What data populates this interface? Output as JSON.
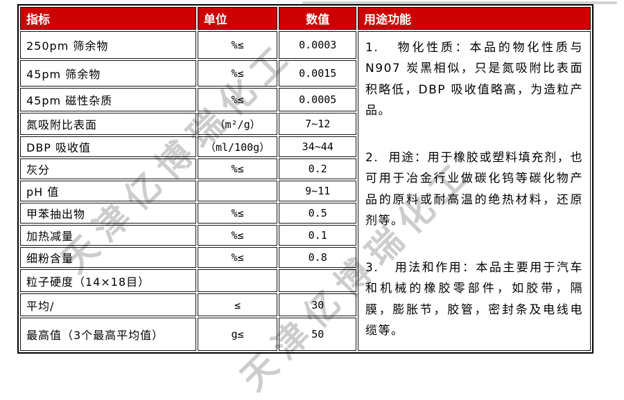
{
  "colors": {
    "header_bg": "#cc0000",
    "header_text": "#ffffff",
    "border": "#000000",
    "watermark": "#c5c5c5"
  },
  "watermark": {
    "text": "天津亿博瑞化工"
  },
  "table": {
    "headers": {
      "indicator": "指标",
      "unit": "单位",
      "value": "数值",
      "usage": "用途功能"
    },
    "rows": [
      {
        "indicator": "250pm 筛余物",
        "unit": "%≤",
        "value": "0.0003"
      },
      {
        "indicator": "45pm 筛余物",
        "unit": "%≤",
        "value": "0.0015"
      },
      {
        "indicator": "45pm 磁性杂质",
        "unit": "%≤",
        "value": "0.0005"
      },
      {
        "indicator": "氮吸附比表面",
        "unit": "（m²/g）",
        "value": "7~12"
      },
      {
        "indicator": "DBP 吸收值",
        "unit": "（ml/100g）",
        "value": "34~44"
      },
      {
        "indicator": "灰分",
        "unit": "%≤",
        "value": "0.2"
      },
      {
        "indicator": "pH 值",
        "unit": "",
        "value": "9~11"
      },
      {
        "indicator": "甲苯抽出物",
        "unit": "%≤",
        "value": "0.5"
      },
      {
        "indicator": "加热减量",
        "unit": "%≤",
        "value": "0.1"
      },
      {
        "indicator": "细粉含量",
        "unit": "%≤",
        "value": "0.8"
      },
      {
        "indicator": "粒子硬度（14×18目）",
        "unit": "",
        "value": ""
      },
      {
        "indicator": "平均/",
        "unit": "≤",
        "value": "30"
      },
      {
        "indicator": "最高值（3个最高平均值）",
        "unit": "g≤",
        "value": "50"
      }
    ],
    "usage": {
      "paragraphs": [
        "1.   物化性质：本品的物化性质与N907 炭黑相似，只是氮吸附比表面积略低，DBP 吸收值略高，为造粒产品。",
        "2.  用途：用于橡胶或塑料填充剂，也可用于冶金行业做碳化钨等碳化物产品的原料或耐高温的绝热材料，还原剂等。",
        "3.   用法和作用：本品主要用于汽车和机械的橡胶零部件，如胶带，隔膜，膨胀节，胶管，密封条及电线电缆等。"
      ]
    }
  }
}
